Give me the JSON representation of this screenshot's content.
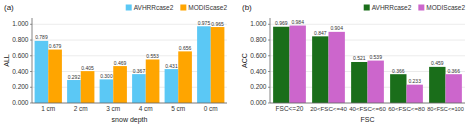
{
  "chart_data": [
    {
      "type": "bar",
      "title": "(a)",
      "xlabel": "snow depth",
      "ylabel": "ALL",
      "categories": [
        "1 cm",
        "2 cm",
        "3 cm",
        "4 cm",
        "5 cm",
        "0 cm"
      ],
      "series": [
        {
          "name": "AVHRRcase2",
          "color": "#5BC8F5",
          "values": [
            0.789,
            0.292,
            0.3,
            0.367,
            0.431,
            0.975
          ],
          "value_labels": [
            "0.789",
            "0.292",
            "0.300",
            "0.367",
            "0.431",
            "0.975"
          ]
        },
        {
          "name": "MODIScase2",
          "color": "#FFA500",
          "values": [
            0.679,
            0.405,
            0.469,
            0.553,
            0.656,
            0.965
          ],
          "value_labels": [
            "0.679",
            "0.405",
            "0.469",
            "0.553",
            "0.656",
            "0.965"
          ]
        }
      ],
      "ylim": [
        0.0,
        1.08
      ],
      "yticks": [
        {
          "value": 0.0,
          "label": "0.000"
        },
        {
          "value": 0.2,
          "label": "0.200"
        },
        {
          "value": 0.4,
          "label": "0.400"
        },
        {
          "value": 0.6,
          "label": "0.600"
        },
        {
          "value": 0.8,
          "label": "0.800"
        },
        {
          "value": 1.0,
          "label": "1.000"
        }
      ],
      "grid": true,
      "legend": "upper right",
      "data_labels": true
    },
    {
      "type": "bar",
      "title": "(b)",
      "xlabel": "FSC",
      "ylabel": "ACC",
      "categories": [
        "FSC<=20",
        "20<FSC<=40",
        "40<FSC<=60",
        "60<FSC<=80",
        "80<FSC<=100"
      ],
      "series": [
        {
          "name": "AVHRRcase2",
          "color": "#1A6E1A",
          "values": [
            0.969,
            0.847,
            0.521,
            0.366,
            0.459
          ],
          "value_labels": [
            "0.969",
            "0.847",
            "0.521",
            "0.366",
            "0.459"
          ]
        },
        {
          "name": "MODIScase2",
          "color": "#CC66CC",
          "values": [
            0.984,
            0.904,
            0.539,
            0.233,
            0.366
          ],
          "value_labels": [
            "0.984",
            "0.904",
            "0.539",
            "0.233",
            "0.366"
          ]
        }
      ],
      "ylim": [
        0.0,
        1.08
      ],
      "yticks": [
        {
          "value": 0.0,
          "label": "0.000"
        },
        {
          "value": 0.2,
          "label": "0.200"
        },
        {
          "value": 0.4,
          "label": "0.400"
        },
        {
          "value": 0.6,
          "label": "0.600"
        },
        {
          "value": 0.8,
          "label": "0.800"
        },
        {
          "value": 1.0,
          "label": "1.000"
        }
      ],
      "grid": true,
      "legend": "upper right",
      "data_labels": true
    }
  ]
}
